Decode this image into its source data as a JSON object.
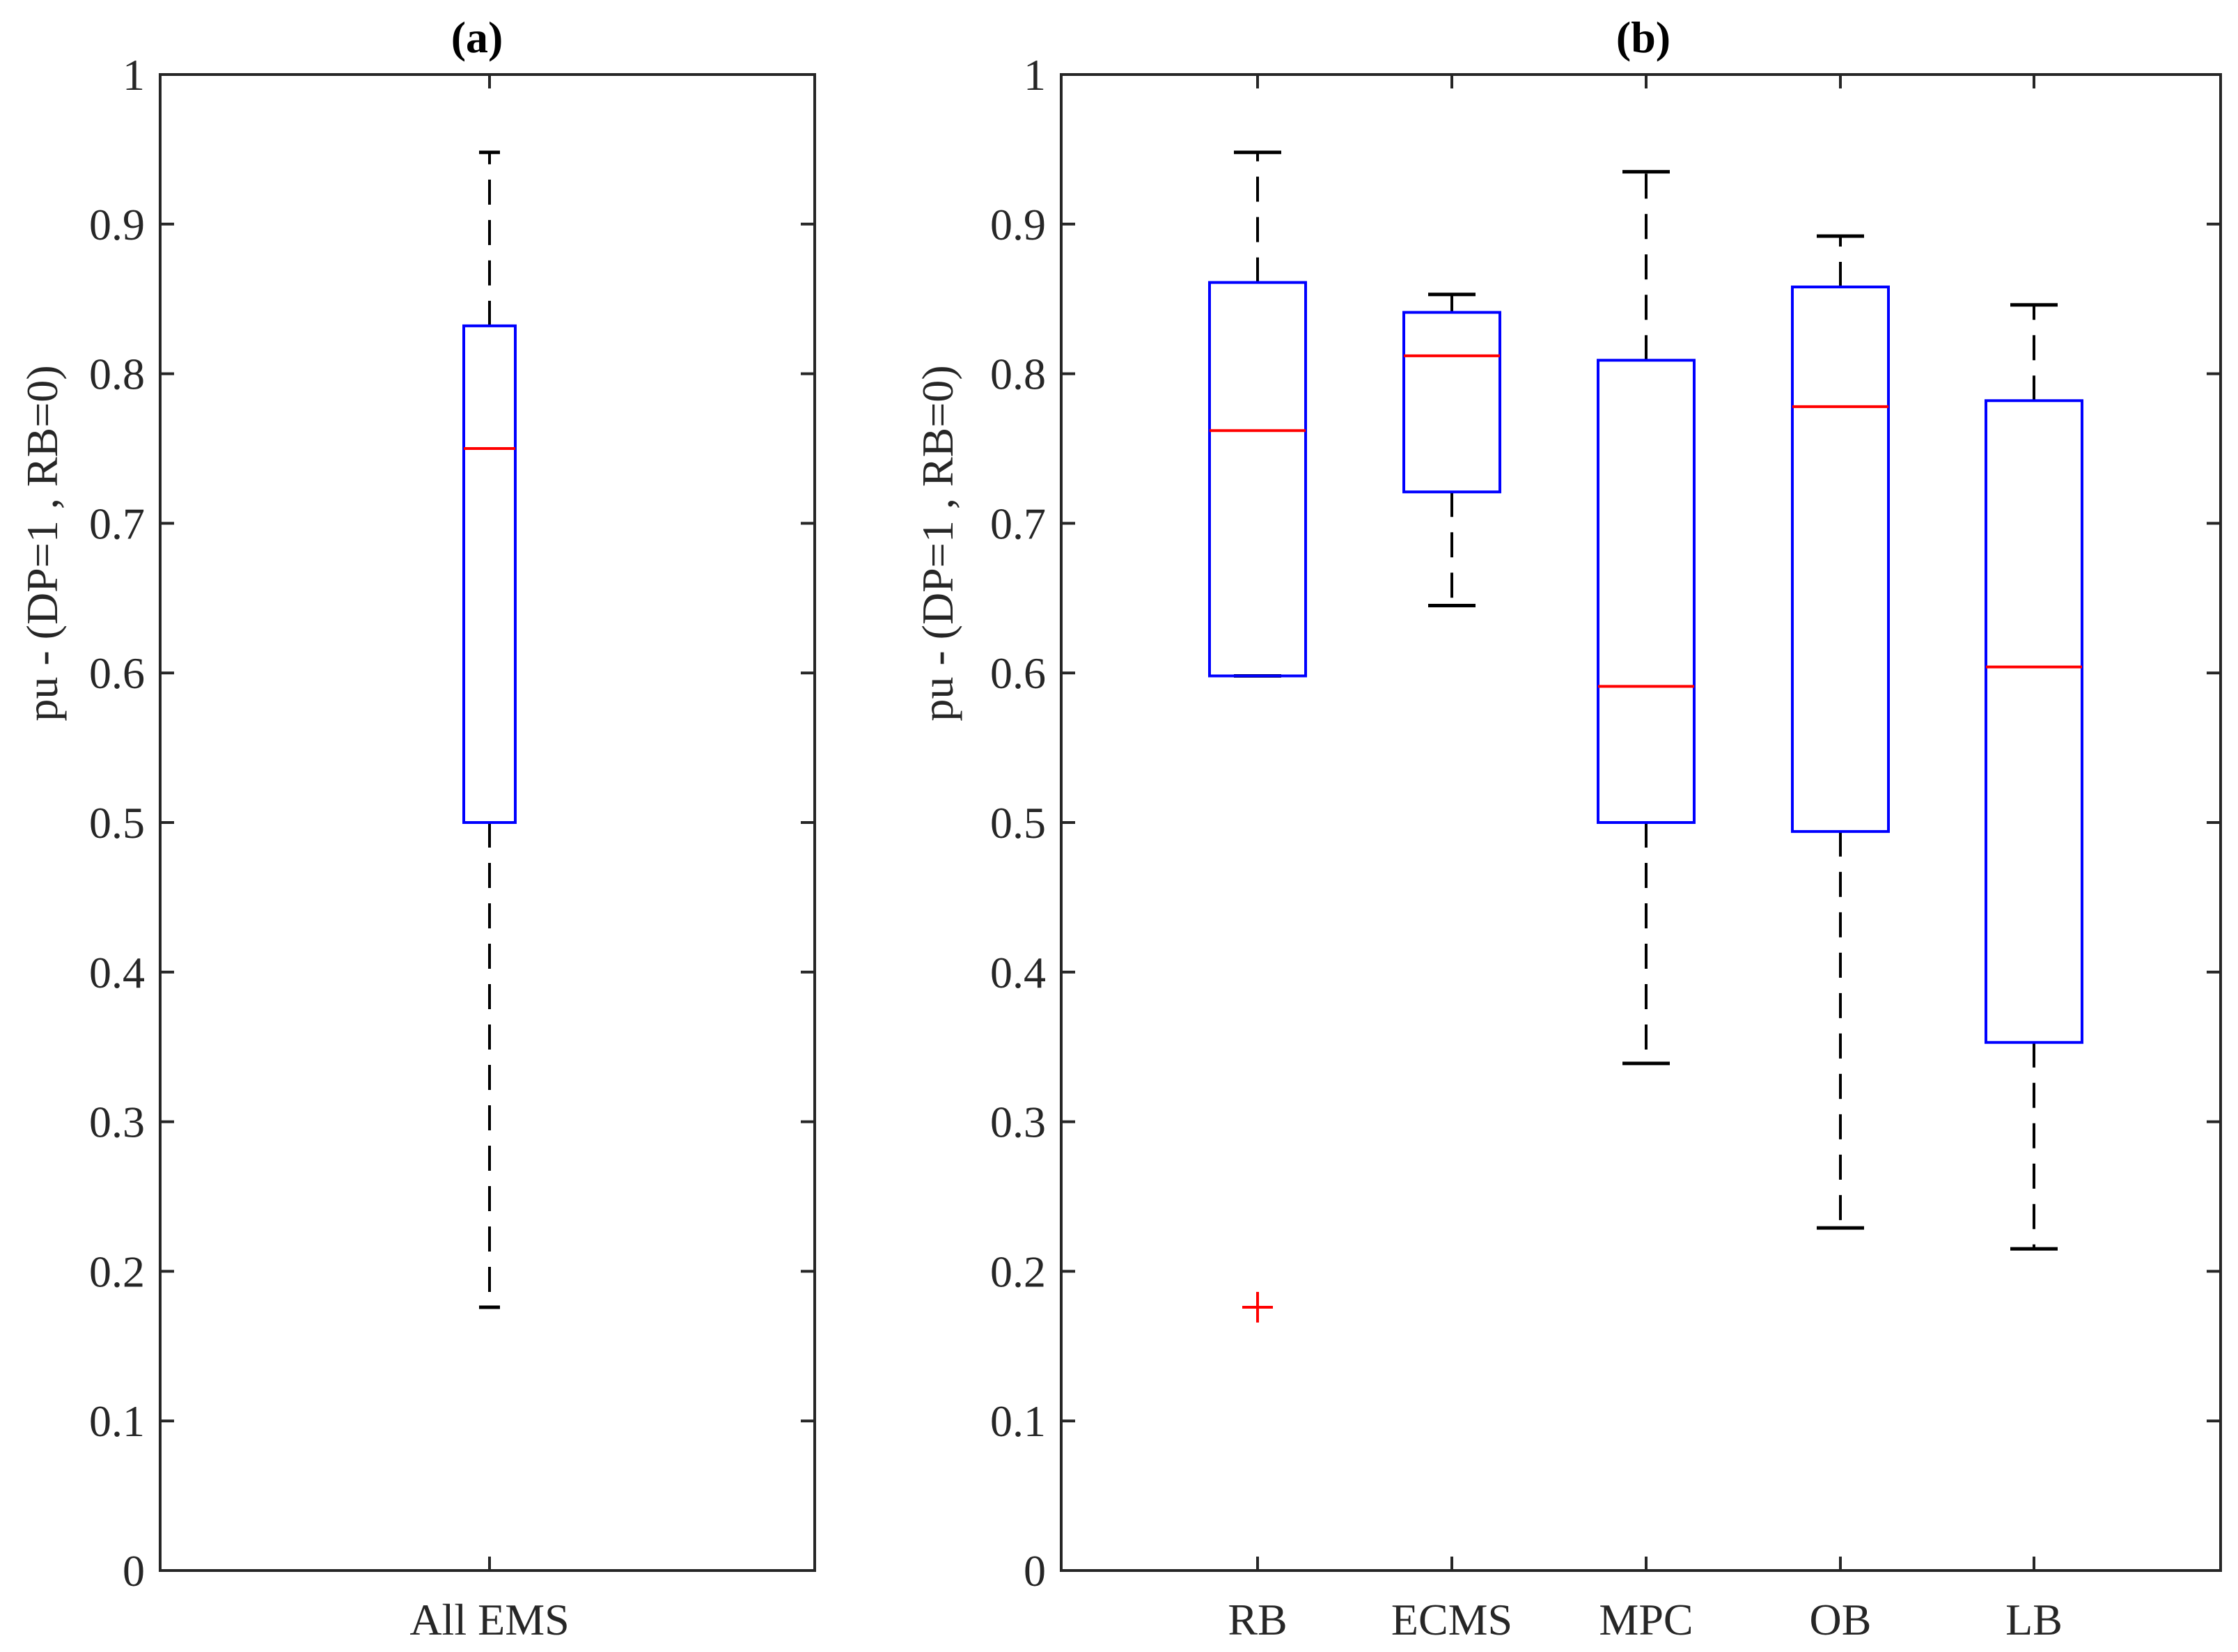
{
  "figure": {
    "description_colors": {
      "box": "#0000ff",
      "median": "#ff0000",
      "whisker": "#000000",
      "outlier": "#ff0000",
      "axes": "#262626"
    }
  },
  "chart_data": [
    {
      "type": "box",
      "title": "(a)",
      "xlabel": "",
      "ylabel": "pu - (DP=1 , RB=0)",
      "ylim": [
        0,
        1
      ],
      "yticks": [
        "0",
        "0.1",
        "0.2",
        "0.3",
        "0.4",
        "0.5",
        "0.6",
        "0.7",
        "0.8",
        "0.9",
        "1"
      ],
      "categories": [
        "All EMS"
      ],
      "boxes": [
        {
          "label": "All EMS",
          "whisker_low": 0.176,
          "q1": 0.5,
          "median": 0.75,
          "q3": 0.832,
          "whisker_high": 0.948,
          "outliers": []
        }
      ]
    },
    {
      "type": "box",
      "title": "(b)",
      "xlabel": "",
      "ylabel": "pu - (DP=1 , RB=0)",
      "ylim": [
        0,
        1
      ],
      "yticks": [
        "0",
        "0.1",
        "0.2",
        "0.3",
        "0.4",
        "0.5",
        "0.6",
        "0.7",
        "0.8",
        "0.9",
        "1"
      ],
      "categories": [
        "RB",
        "ECMS",
        "MPC",
        "OB",
        "LB"
      ],
      "boxes": [
        {
          "label": "RB",
          "whisker_low": 0.598,
          "q1": 0.598,
          "median": 0.762,
          "q3": 0.861,
          "whisker_high": 0.948,
          "outliers": [
            0.176
          ]
        },
        {
          "label": "ECMS",
          "whisker_low": 0.645,
          "q1": 0.721,
          "median": 0.812,
          "q3": 0.841,
          "whisker_high": 0.853,
          "outliers": []
        },
        {
          "label": "MPC",
          "whisker_low": 0.339,
          "q1": 0.5,
          "median": 0.591,
          "q3": 0.809,
          "whisker_high": 0.935,
          "outliers": []
        },
        {
          "label": "OB",
          "whisker_low": 0.229,
          "q1": 0.494,
          "median": 0.778,
          "q3": 0.858,
          "whisker_high": 0.892,
          "outliers": []
        },
        {
          "label": "LB",
          "whisker_low": 0.215,
          "q1": 0.353,
          "median": 0.604,
          "q3": 0.782,
          "whisker_high": 0.846,
          "outliers": []
        }
      ]
    }
  ]
}
